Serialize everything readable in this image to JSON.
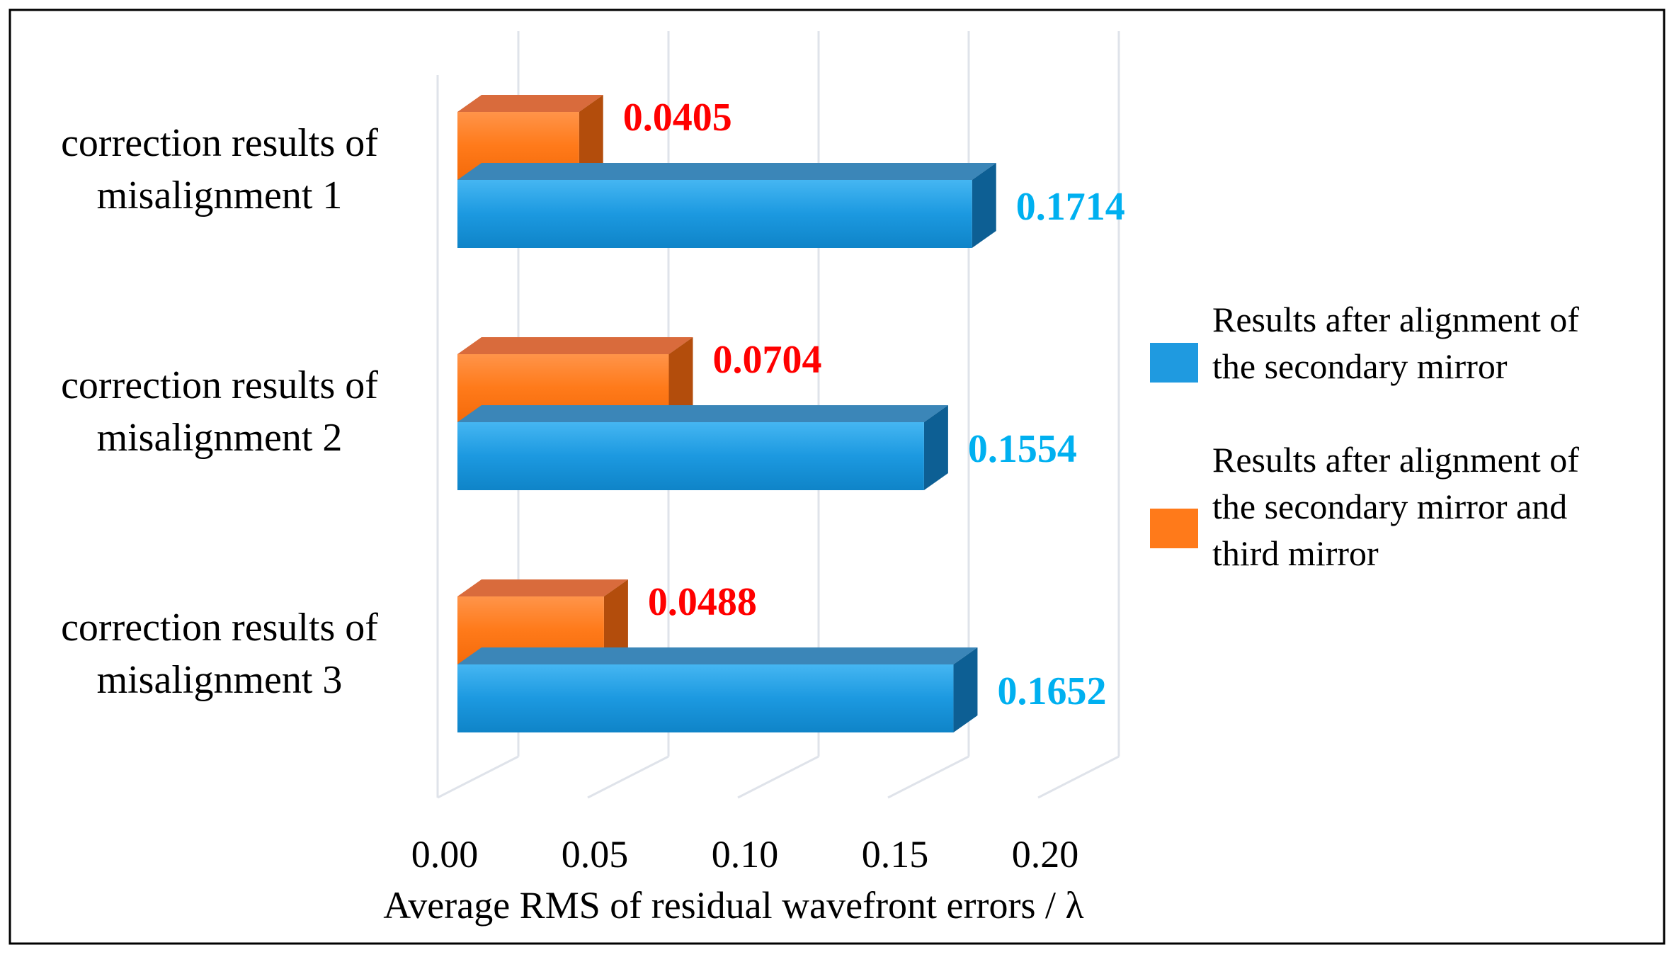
{
  "chart_data": {
    "type": "bar",
    "orientation": "horizontal",
    "style": "3d-clustered",
    "categories": [
      "correction results of misalignment 1",
      "correction results of misalignment 2",
      "correction results of misalignment 3"
    ],
    "category_lines": [
      [
        "correction results of",
        "misalignment 1"
      ],
      [
        "correction results of",
        "misalignment 2"
      ],
      [
        "correction results of",
        "misalignment 3"
      ]
    ],
    "series": [
      {
        "name": "Results after alignment of the secondary mirror",
        "legend_lines": [
          "Results after alignment of",
          "the secondary mirror"
        ],
        "values": [
          0.1714,
          0.1554,
          0.1652
        ],
        "labels": [
          "0.1714",
          "0.1554",
          "0.1652"
        ],
        "color": "#1f9ae0",
        "label_color": "#00b0f0"
      },
      {
        "name": "Results after alignment of the secondary mirror and third mirror",
        "legend_lines": [
          "Results after alignment of",
          "the secondary mirror and",
          "third mirror"
        ],
        "values": [
          0.0405,
          0.0704,
          0.0488
        ],
        "labels": [
          "0.0405",
          "0.0704",
          "0.0488"
        ],
        "color": "#ff7a1a",
        "label_color": "#ff0000"
      }
    ],
    "xlabel": "Average RMS of residual wavefront errors / λ",
    "ylabel": "",
    "xlim": [
      0,
      0.2
    ],
    "xticks": [
      "0.00",
      "0.05",
      "0.10",
      "0.15",
      "0.20"
    ],
    "grid": true,
    "legend_position": "right"
  }
}
